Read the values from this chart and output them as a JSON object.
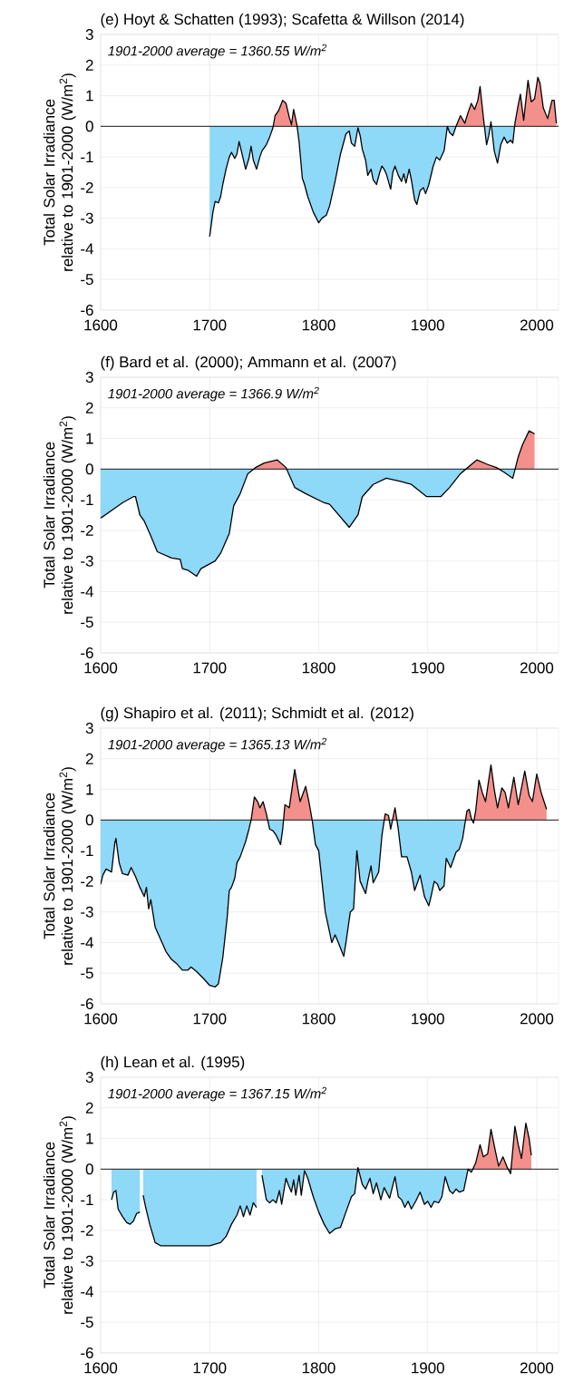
{
  "chart_data": [
    {
      "type": "area",
      "title": "(e) Hoyt & Schatten (1993); Scafetta & Willson (2014)",
      "ylabel": "Total Solar Irradiance relative to 1901-2000 (W/m$^{2}$)",
      "annotations": [
        "1901-2000 average = 1360.55 W/m$^{2}$"
      ],
      "xlim": [
        1600,
        2020
      ],
      "xticks": [
        1600,
        1700,
        1800,
        1900,
        2000
      ],
      "ylim": [
        -6,
        3
      ],
      "yticks": [
        -6,
        -5,
        -4,
        -3,
        -2,
        -1,
        0,
        1,
        2,
        3
      ],
      "grid": true,
      "ref_lines": [
        {
          "axis": "y",
          "value": 0,
          "color": "#000000"
        }
      ],
      "series": [
        {
          "color": "#000000",
          "colors": [
            "#8ed8f8",
            "#8ed8f8",
            "#8ed8f8",
            "#8ed8f8",
            "#8ed8f8",
            "#8ed8f8",
            "#8ed8f8",
            "#8ed8f8",
            "#8ed8f8",
            "#8ed8f8",
            "#8ed8f8",
            "#8ed8f8",
            "#8ed8f8",
            "#8ed8f8",
            "#8ed8f8",
            "#8ed8f8",
            "#8ed8f8",
            "#8ed8f8",
            "#8ed8f8",
            "#8ed8f8",
            "#8ed8f8",
            "#8ed8f8",
            "#8ed8f8",
            "#f4908c",
            "#f4908c",
            "#f4908c",
            "#f4908c",
            "#f4908c",
            "#f4908c",
            "#f4908c",
            "#f4908c",
            "#8ed8f8",
            "#8ed8f8",
            "#8ed8f8",
            "#8ed8f8",
            "#8ed8f8",
            "#8ed8f8",
            "#8ed8f8",
            "#8ed8f8",
            "#8ed8f8",
            "#8ed8f8",
            "#8ed8f8",
            "#8ed8f8",
            "#8ed8f8",
            "#8ed8f8",
            "#8ed8f8",
            "#8ed8f8",
            "#8ed8f8",
            "#8ed8f8",
            "#8ed8f8",
            "#8ed8f8",
            "#8ed8f8",
            "#8ed8f8",
            "#8ed8f8",
            "#8ed8f8",
            "#8ed8f8",
            "#8ed8f8",
            "#8ed8f8",
            "#8ed8f8",
            "#8ed8f8",
            "#8ed8f8",
            "#8ed8f8",
            "#8ed8f8",
            "#8ed8f8",
            "#8ed8f8",
            "#8ed8f8",
            "#8ed8f8",
            "#8ed8f8",
            "#8ed8f8",
            "#8ed8f8",
            "#8ed8f8",
            "#8ed8f8",
            "#8ed8f8",
            "#8ed8f8",
            "#8ed8f8",
            "#8ed8f8",
            "#8ed8f8",
            "#8ed8f8",
            "#8ed8f8",
            "#8ed8f8",
            "#8ed8f8",
            "#f4908c",
            "#f4908c",
            "#f4908c",
            "#f4908c",
            "#f4908c",
            "#f4908c",
            "#f4908c",
            "#f4908c",
            "#8ed8f8",
            "#8ed8f8",
            "#f4908c",
            "#8ed8f8",
            "#8ed8f8",
            "#8ed8f8",
            "#8ed8f8",
            "#8ed8f8",
            "#8ed8f8",
            "#8ed8f8",
            "#f4908c",
            "#f4908c",
            "#f4908c",
            "#f4908c",
            "#f4908c",
            "#f4908c",
            "#f4908c",
            "#f4908c",
            "#f4908c",
            "#f4908c",
            "#f4908c",
            "#f4908c",
            "#f4908c",
            "#f4908c"
          ],
          "x": [
            1700,
            1703,
            1705,
            1708,
            1710,
            1712,
            1715,
            1718,
            1720,
            1723,
            1725,
            1727,
            1730,
            1733,
            1736,
            1738,
            1740,
            1743,
            1746,
            1748,
            1752,
            1755,
            1758,
            1760,
            1763,
            1767,
            1770,
            1773,
            1775,
            1777,
            1780,
            1782,
            1785,
            1787,
            1790,
            1795,
            1800,
            1803,
            1807,
            1810,
            1815,
            1820,
            1825,
            1828,
            1830,
            1833,
            1836,
            1838,
            1840,
            1843,
            1845,
            1848,
            1850,
            1853,
            1856,
            1858,
            1860,
            1862,
            1866,
            1868,
            1870,
            1873,
            1876,
            1878,
            1880,
            1883,
            1885,
            1888,
            1890,
            1893,
            1896,
            1898,
            1901,
            1905,
            1908,
            1911,
            1915,
            1918,
            1920,
            1923,
            1926,
            1930,
            1934,
            1937,
            1940,
            1943,
            1946,
            1948,
            1951,
            1954,
            1956,
            1958,
            1961,
            1964,
            1967,
            1970,
            1973,
            1976,
            1978,
            1980,
            1983,
            1985,
            1988,
            1992,
            1995,
            1998,
            2001,
            2003,
            2006,
            2010,
            2014,
            2016,
            2018
          ],
          "values": [
            -3.6,
            -2.8,
            -2.45,
            -2.5,
            -2.3,
            -1.9,
            -1.4,
            -1.0,
            -0.85,
            -1.05,
            -0.9,
            -0.5,
            -0.95,
            -1.4,
            -1.05,
            -0.65,
            -1.1,
            -1.4,
            -1.0,
            -0.8,
            -0.6,
            -0.35,
            -0.05,
            0.35,
            0.5,
            0.85,
            0.75,
            0.3,
            0.05,
            0.55,
            0.05,
            -0.5,
            -1.7,
            -1.9,
            -2.3,
            -2.8,
            -3.15,
            -3.0,
            -2.9,
            -2.6,
            -1.8,
            -0.9,
            -0.25,
            -0.15,
            -0.55,
            -0.65,
            -0.05,
            -0.3,
            -0.75,
            -1.1,
            -1.6,
            -1.4,
            -1.75,
            -1.9,
            -1.5,
            -1.3,
            -1.4,
            -1.55,
            -2.05,
            -1.5,
            -1.3,
            -1.6,
            -1.8,
            -1.55,
            -1.85,
            -1.4,
            -1.75,
            -2.4,
            -2.55,
            -2.1,
            -2.0,
            -2.2,
            -1.9,
            -1.3,
            -1.0,
            -1.1,
            -0.8,
            0.0,
            -0.2,
            -0.3,
            0.0,
            0.35,
            0.1,
            0.45,
            0.75,
            0.55,
            0.85,
            1.3,
            0.3,
            -0.6,
            -0.3,
            0.15,
            -0.8,
            -1.2,
            -0.6,
            -0.35,
            -0.55,
            -0.45,
            -0.55,
            0.1,
            0.7,
            1.05,
            0.2,
            1.5,
            0.8,
            0.9,
            1.6,
            1.4,
            0.6,
            0.25,
            0.85,
            0.85,
            0.1
          ]
        }
      ]
    },
    {
      "type": "area",
      "title": "(f) Bard et al. (2000); Ammann et al. (2007)",
      "ylabel": "Total Solar Irradiance relative to 1901-2000 (W/m$^{2}$)",
      "annotations": [
        "1901-2000 average = 1366.9 W/m$^{2}$"
      ],
      "xlim": [
        1600,
        2020
      ],
      "xticks": [
        1600,
        1700,
        1800,
        1900,
        2000
      ],
      "ylim": [
        -6,
        3
      ],
      "yticks": [
        -6,
        -5,
        -4,
        -3,
        -2,
        -1,
        0,
        1,
        2,
        3
      ],
      "grid": true,
      "ref_lines": [
        {
          "axis": "y",
          "value": 0,
          "color": "#000000"
        }
      ],
      "series": [
        {
          "color": "#000000",
          "colors": [
            "#8ed8f8",
            "#8ed8f8",
            "#8ed8f8",
            "#8ed8f8",
            "#8ed8f8",
            "#8ed8f8",
            "#8ed8f8",
            "#8ed8f8",
            "#8ed8f8",
            "#8ed8f8",
            "#8ed8f8",
            "#8ed8f8",
            "#8ed8f8",
            "#8ed8f8",
            "#8ed8f8",
            "#8ed8f8",
            "#8ed8f8",
            "#8ed8f8",
            "#8ed8f8",
            "#8ed8f8",
            "#8ed8f8",
            "#f4908c",
            "#f4908c",
            "#f4908c",
            "#f4908c",
            "#8ed8f8",
            "#8ed8f8",
            "#8ed8f8",
            "#8ed8f8",
            "#8ed8f8",
            "#8ed8f8",
            "#8ed8f8",
            "#8ed8f8",
            "#8ed8f8",
            "#8ed8f8",
            "#8ed8f8",
            "#8ed8f8",
            "#8ed8f8",
            "#8ed8f8",
            "#8ed8f8",
            "#f4908c",
            "#f4908c",
            "#f4908c",
            "#8ed8f8",
            "#8ed8f8",
            "#f4908c",
            "#f4908c",
            "#f4908c",
            "#f4908c"
          ],
          "x": [
            1600,
            1610,
            1620,
            1630,
            1632,
            1636,
            1640,
            1645,
            1652,
            1665,
            1673,
            1675,
            1680,
            1688,
            1692,
            1705,
            1710,
            1718,
            1722,
            1728,
            1735,
            1742,
            1750,
            1762,
            1770,
            1778,
            1788,
            1805,
            1810,
            1828,
            1836,
            1840,
            1850,
            1862,
            1875,
            1885,
            1899,
            1912,
            1920,
            1930,
            1945,
            1955,
            1963,
            1970,
            1978,
            1983,
            1987,
            1993,
            1998
          ],
          "values": [
            -1.6,
            -1.35,
            -1.1,
            -0.9,
            -0.9,
            -1.5,
            -1.7,
            -2.1,
            -2.7,
            -2.9,
            -2.95,
            -3.25,
            -3.3,
            -3.5,
            -3.25,
            -3.0,
            -2.75,
            -2.1,
            -1.2,
            -0.8,
            -0.15,
            0.05,
            0.2,
            0.3,
            0.05,
            -0.6,
            -0.8,
            -1.1,
            -1.15,
            -1.9,
            -1.5,
            -0.9,
            -0.5,
            -0.3,
            -0.4,
            -0.5,
            -0.9,
            -0.9,
            -0.6,
            -0.15,
            0.3,
            0.15,
            0.05,
            -0.1,
            -0.3,
            0.4,
            0.8,
            1.25,
            1.15
          ]
        }
      ]
    },
    {
      "type": "area",
      "title": "(g) Shapiro et al. (2011); Schmidt et al. (2012)",
      "ylabel": "Total Solar Irradiance relative to 1901-2000 (W/m$^{2}$)",
      "annotations": [
        "1901-2000 average = 1365.13 W/m$^{2}$"
      ],
      "xlim": [
        1600,
        2020
      ],
      "xticks": [
        1600,
        1700,
        1800,
        1900,
        2000
      ],
      "ylim": [
        -6,
        3
      ],
      "yticks": [
        -6,
        -5,
        -4,
        -3,
        -2,
        -1,
        0,
        1,
        2,
        3
      ],
      "grid": true,
      "ref_lines": [
        {
          "axis": "y",
          "value": 0,
          "color": "#000000"
        }
      ],
      "series": [
        {
          "color": "#000000",
          "colors": [
            "#8ed8f8",
            "#8ed8f8",
            "#8ed8f8",
            "#8ed8f8",
            "#8ed8f8",
            "#8ed8f8",
            "#8ed8f8",
            "#8ed8f8",
            "#8ed8f8",
            "#8ed8f8",
            "#8ed8f8",
            "#8ed8f8",
            "#8ed8f8",
            "#8ed8f8",
            "#8ed8f8",
            "#8ed8f8",
            "#8ed8f8",
            "#8ed8f8",
            "#8ed8f8",
            "#8ed8f8",
            "#8ed8f8",
            "#8ed8f8",
            "#8ed8f8",
            "#8ed8f8",
            "#8ed8f8",
            "#8ed8f8",
            "#8ed8f8",
            "#8ed8f8",
            "#8ed8f8",
            "#8ed8f8",
            "#8ed8f8",
            "#8ed8f8",
            "#8ed8f8",
            "#8ed8f8",
            "#8ed8f8",
            "#8ed8f8",
            "#8ed8f8",
            "#8ed8f8",
            "#8ed8f8",
            "#8ed8f8",
            "#f4908c",
            "#f4908c",
            "#f4908c",
            "#f4908c",
            "#f4908c",
            "#8ed8f8",
            "#8ed8f8",
            "#8ed8f8",
            "#8ed8f8",
            "#8ed8f8",
            "#f4908c",
            "#f4908c",
            "#f4908c",
            "#f4908c",
            "#f4908c",
            "#f4908c",
            "#f4908c",
            "#8ed8f8",
            "#8ed8f8",
            "#8ed8f8",
            "#8ed8f8",
            "#8ed8f8",
            "#8ed8f8",
            "#8ed8f8",
            "#8ed8f8",
            "#8ed8f8",
            "#8ed8f8",
            "#8ed8f8",
            "#8ed8f8",
            "#8ed8f8",
            "#8ed8f8",
            "#8ed8f8",
            "#8ed8f8",
            "#8ed8f8",
            "#8ed8f8",
            "#8ed8f8",
            "#f4908c",
            "#f4908c",
            "#8ed8f8",
            "#f4908c",
            "#8ed8f8",
            "#8ed8f8",
            "#8ed8f8",
            "#8ed8f8",
            "#8ed8f8",
            "#8ed8f8",
            "#8ed8f8",
            "#8ed8f8",
            "#8ed8f8",
            "#8ed8f8",
            "#8ed8f8",
            "#8ed8f8",
            "#8ed8f8",
            "#8ed8f8",
            "#8ed8f8",
            "#8ed8f8",
            "#8ed8f8",
            "#8ed8f8",
            "#f4908c",
            "#f4908c",
            "#f4908c",
            "#8ed8f8",
            "#f4908c",
            "#f4908c",
            "#f4908c",
            "#f4908c",
            "#f4908c",
            "#f4908c",
            "#f4908c",
            "#f4908c",
            "#f4908c",
            "#f4908c",
            "#f4908c",
            "#f4908c",
            "#f4908c",
            "#f4908c",
            "#f4908c",
            "#f4908c",
            "#f4908c",
            "#f4908c"
          ],
          "x": [
            1600,
            1602,
            1605,
            1610,
            1613,
            1614,
            1617,
            1620,
            1625,
            1628,
            1632,
            1636,
            1640,
            1642,
            1644,
            1646,
            1650,
            1655,
            1660,
            1665,
            1670,
            1675,
            1680,
            1683,
            1688,
            1695,
            1700,
            1705,
            1708,
            1712,
            1716,
            1718,
            1720,
            1723,
            1725,
            1728,
            1730,
            1733,
            1736,
            1738,
            1741,
            1744,
            1746,
            1749,
            1752,
            1755,
            1758,
            1761,
            1765,
            1767,
            1769,
            1773,
            1778,
            1781,
            1783,
            1788,
            1791,
            1794,
            1797,
            1800,
            1806,
            1812,
            1815,
            1818,
            1823,
            1825,
            1829,
            1832,
            1835,
            1838,
            1843,
            1845,
            1848,
            1850,
            1855,
            1858,
            1861,
            1864,
            1866,
            1870,
            1873,
            1876,
            1881,
            1885,
            1888,
            1893,
            1897,
            1901,
            1903,
            1906,
            1909,
            1911,
            1915,
            1917,
            1921,
            1926,
            1929,
            1932,
            1936,
            1938,
            1940,
            1942,
            1944,
            1947,
            1950,
            1953,
            1958,
            1961,
            1964,
            1968,
            1971,
            1974,
            1979,
            1983,
            1989,
            1993,
            1996,
            2000,
            2004,
            2009
          ],
          "values": [
            -2.1,
            -1.8,
            -1.6,
            -1.7,
            -0.75,
            -0.6,
            -1.4,
            -1.75,
            -1.8,
            -1.55,
            -1.85,
            -2.2,
            -2.5,
            -2.2,
            -2.9,
            -2.6,
            -3.5,
            -3.9,
            -4.3,
            -4.55,
            -4.7,
            -4.9,
            -4.9,
            -4.8,
            -4.95,
            -5.2,
            -5.4,
            -5.45,
            -5.35,
            -4.5,
            -3.2,
            -2.3,
            -2.2,
            -1.9,
            -1.4,
            -1.2,
            -1.0,
            -0.7,
            -0.3,
            0.0,
            0.75,
            0.6,
            0.4,
            0.6,
            0.2,
            -0.3,
            -0.35,
            -0.5,
            -0.8,
            -0.3,
            0.5,
            0.4,
            1.65,
            1.0,
            0.6,
            1.1,
            0.6,
            0.0,
            -0.8,
            -1.0,
            -3.0,
            -4.0,
            -3.75,
            -4.0,
            -4.45,
            -4.0,
            -3.0,
            -2.9,
            -1.0,
            -2.0,
            -2.4,
            -2.0,
            -1.5,
            -2.05,
            -1.7,
            -0.5,
            0.2,
            0.15,
            -0.3,
            0.4,
            -0.3,
            -1.2,
            -1.2,
            -1.7,
            -2.3,
            -1.8,
            -2.5,
            -2.8,
            -2.5,
            -2.0,
            -2.1,
            -2.3,
            -2.15,
            -1.25,
            -1.55,
            -1.05,
            -0.95,
            -0.6,
            0.3,
            0.35,
            0.05,
            -0.1,
            0.3,
            1.3,
            0.9,
            0.6,
            1.8,
            1.0,
            0.4,
            1.05,
            0.9,
            0.4,
            1.4,
            0.5,
            1.6,
            0.8,
            0.6,
            1.5,
            0.9,
            0.35
          ]
        }
      ]
    },
    {
      "type": "area",
      "title": "(h) Lean et al. (1995)",
      "ylabel": "Total Solar Irradiance relative to 1901-2000 (W/m$^{2}$)",
      "annotations": [
        "1901-2000 average = 1367.15 W/m$^{2}$"
      ],
      "xlim": [
        1600,
        2020
      ],
      "xticks": [
        1600,
        1700,
        1800,
        1900,
        2000
      ],
      "ylim": [
        -6,
        3
      ],
      "yticks": [
        -6,
        -5,
        -4,
        -3,
        -2,
        -1,
        0,
        1,
        2,
        3
      ],
      "grid": true,
      "ref_lines": [
        {
          "axis": "y",
          "value": 0,
          "color": "#000000"
        }
      ],
      "series": [
        {
          "color": "#000000",
          "colors": [
            "#8ed8f8",
            "#8ed8f8",
            "#8ed8f8",
            "#8ed8f8",
            "#8ed8f8",
            "#8ed8f8",
            "#8ed8f8",
            "#8ed8f8",
            "#8ed8f8",
            "#8ed8f8",
            "#8ed8f8",
            "#8ed8f8",
            "#8ed8f8",
            "#8ed8f8",
            "#8ed8f8",
            "#8ed8f8",
            "#8ed8f8",
            "#8ed8f8",
            "#8ed8f8",
            "#8ed8f8",
            "#8ed8f8",
            "#8ed8f8",
            "#8ed8f8",
            "#8ed8f8",
            "#8ed8f8",
            "#8ed8f8",
            "#8ed8f8",
            "#8ed8f8",
            "#8ed8f8",
            "#8ed8f8",
            "#8ed8f8",
            "#8ed8f8",
            "#8ed8f8",
            "#8ed8f8",
            "#8ed8f8",
            "#8ed8f8",
            "#8ed8f8",
            "#8ed8f8",
            "#8ed8f8",
            "#8ed8f8",
            "#8ed8f8",
            "#8ed8f8",
            "#8ed8f8",
            "#8ed8f8",
            "#8ed8f8",
            "#8ed8f8",
            "#8ed8f8",
            "#8ed8f8",
            "#8ed8f8",
            "#8ed8f8",
            "#8ed8f8",
            "#8ed8f8",
            "#8ed8f8",
            "#8ed8f8",
            "#8ed8f8",
            "#f4908c",
            "#8ed8f8",
            "#8ed8f8",
            "#8ed8f8",
            "#8ed8f8",
            "#8ed8f8",
            "#8ed8f8",
            "#8ed8f8",
            "#8ed8f8",
            "#8ed8f8",
            "#8ed8f8",
            "#8ed8f8",
            "#8ed8f8",
            "#8ed8f8",
            "#8ed8f8",
            "#8ed8f8",
            "#8ed8f8",
            "#8ed8f8",
            "#8ed8f8",
            "#8ed8f8",
            "#8ed8f8",
            "#8ed8f8",
            "#8ed8f8",
            "#8ed8f8",
            "#8ed8f8",
            "#8ed8f8",
            "#8ed8f8",
            "#8ed8f8",
            "#8ed8f8",
            "#8ed8f8",
            "#8ed8f8",
            "#f4908c",
            "#f4908c",
            "#f4908c",
            "#f4908c",
            "#f4908c",
            "#f4908c",
            "#f4908c",
            "#f4908c",
            "#f4908c",
            "#8ed8f8",
            "#f4908c",
            "#f4908c",
            "#f4908c",
            "#f4908c",
            "#f4908c",
            "#f4908c"
          ],
          "x": [
            1610,
            1612,
            1614,
            1616,
            1620,
            1624,
            1627,
            1630,
            1633,
            1636,
            1637,
            1639,
            1641,
            1645,
            1650,
            1655,
            1670,
            1690,
            1700,
            1710,
            1715,
            1720,
            1725,
            1728,
            1731,
            1734,
            1737,
            1740,
            1743,
            1746,
            1748,
            1752,
            1755,
            1758,
            1761,
            1764,
            1766,
            1770,
            1772,
            1775,
            1777,
            1779,
            1782,
            1784,
            1787,
            1790,
            1795,
            1800,
            1805,
            1810,
            1815,
            1820,
            1825,
            1830,
            1833,
            1836,
            1840,
            1843,
            1847,
            1850,
            1853,
            1857,
            1860,
            1865,
            1870,
            1873,
            1876,
            1879,
            1882,
            1885,
            1889,
            1893,
            1897,
            1900,
            1903,
            1906,
            1910,
            1913,
            1916,
            1920,
            1923,
            1926,
            1929,
            1933,
            1937,
            1940,
            1944,
            1948,
            1951,
            1955,
            1958,
            1962,
            1965,
            1969,
            1973,
            1976,
            1980,
            1983,
            1986,
            1990,
            1993,
            1995
          ],
          "values": [
            -1.0,
            -0.75,
            -0.7,
            -1.3,
            -1.55,
            -1.75,
            -1.8,
            -1.7,
            -1.45,
            -1.4,
            null,
            -0.85,
            -1.2,
            -1.8,
            -2.4,
            -2.5,
            -2.5,
            -2.5,
            -2.5,
            -2.4,
            -2.2,
            -1.8,
            -1.5,
            -1.2,
            -1.55,
            -1.2,
            -1.5,
            -1.1,
            -1.25,
            null,
            -0.2,
            -1.0,
            -1.1,
            -1.0,
            -1.1,
            -0.7,
            -1.15,
            -0.3,
            -0.5,
            -0.75,
            -0.35,
            -0.85,
            -0.2,
            -0.85,
            -0.05,
            -0.3,
            -0.9,
            -1.4,
            -1.8,
            -2.1,
            -1.95,
            -1.9,
            -1.4,
            -0.9,
            -0.8,
            0.05,
            -0.5,
            -0.65,
            -0.3,
            -0.8,
            -0.45,
            -1.0,
            -0.6,
            -0.95,
            -0.25,
            -0.9,
            -1.0,
            -1.25,
            -1.05,
            -1.3,
            -1.05,
            -0.75,
            -1.15,
            -1.05,
            -1.25,
            -1.05,
            -1.1,
            -0.9,
            -0.25,
            -0.7,
            -0.8,
            -0.65,
            -0.75,
            -0.7,
            0.0,
            -0.1,
            0.2,
            0.8,
            0.4,
            0.5,
            1.3,
            0.6,
            0.1,
            0.4,
            0.05,
            -0.15,
            1.4,
            0.8,
            0.35,
            1.5,
            1.0,
            0.45
          ]
        }
      ]
    }
  ]
}
